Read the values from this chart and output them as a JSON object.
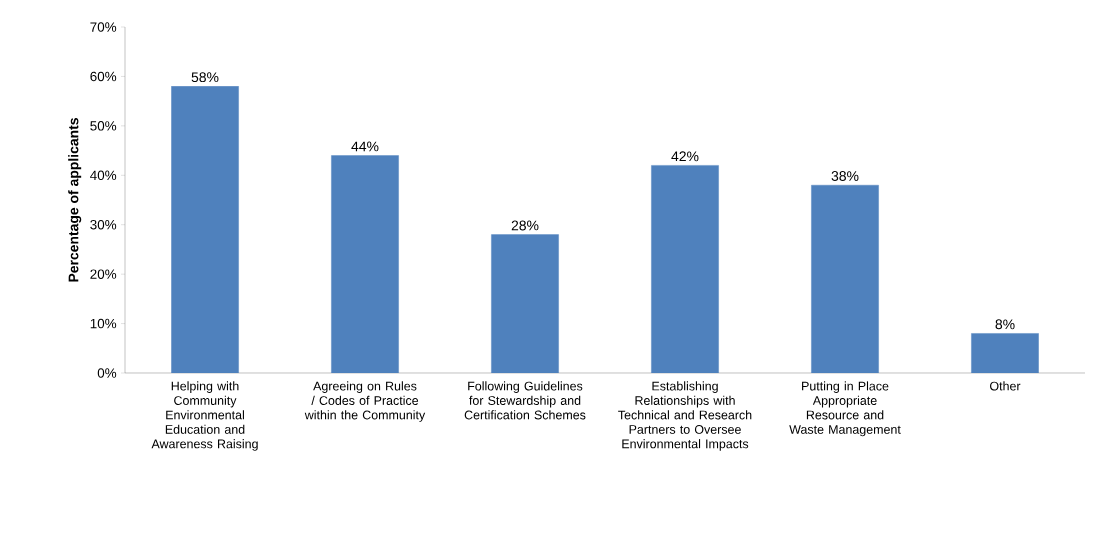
{
  "chart_data": {
    "type": "bar",
    "ylabel": "Percentage of applicants",
    "categories": [
      "Helping with Community Environmental Education and Awareness Raising",
      "Agreeing on Rules / Codes of Practice within the Community",
      "Following Guidelines for Stewardship and Certification Schemes",
      "Establishing Relationships with Technical and Research Partners to Oversee Environmental Impacts",
      "Putting in Place Appropriate Resource and Waste Management",
      "Other"
    ],
    "values": [
      58,
      44,
      28,
      42,
      38,
      8
    ],
    "value_labels": [
      "58%",
      "44%",
      "28%",
      "42%",
      "38%",
      "8%"
    ],
    "color": "#4f81bd",
    "ylim": [
      0,
      70
    ],
    "yticks": [
      {
        "value": 0,
        "label": "0%"
      },
      {
        "value": 10,
        "label": "10%"
      },
      {
        "value": 20,
        "label": "20%"
      },
      {
        "value": 30,
        "label": "30%"
      },
      {
        "value": 40,
        "label": "40%"
      },
      {
        "value": 50,
        "label": "50%"
      },
      {
        "value": 60,
        "label": "60%"
      },
      {
        "value": 70,
        "label": "70%"
      }
    ],
    "grid": false
  }
}
